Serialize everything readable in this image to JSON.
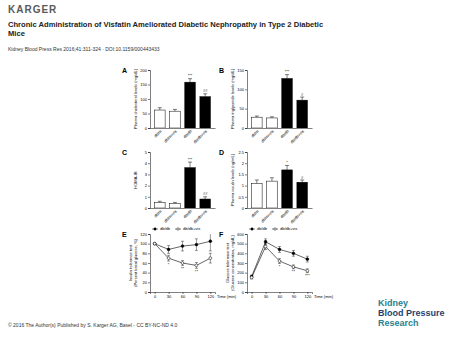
{
  "page": {
    "publisher": "KARGER",
    "title_lines": [
      "Chronic Administration of Visfatin Ameliorated Diabetic Nephropathy in Type 2 Diabetic",
      "Mice"
    ],
    "citation": "Kidney Blood Press Res 2016;41:311-324 · DOI:10.1159/000443433",
    "footer": "© 2016 The Author(s) Published by S. Karger AG, Basel - CC BY-NC-ND 4.0",
    "journal_logo": [
      "Kidney",
      "Blood Pressure",
      "Research"
    ]
  },
  "chart_data": [
    {
      "type": "bar",
      "title": "A",
      "y_label": "Plasma cholesterol levels (mg/dL)",
      "categories": [
        "db/m",
        "db/m+vis",
        "db/db",
        "db/db+vis"
      ],
      "values": [
        62,
        58,
        158,
        108
      ],
      "errors": [
        8,
        6,
        12,
        10
      ],
      "annotations": [
        null,
        null,
        "***",
        "##"
      ],
      "colors": [
        "#ffffff",
        "#ffffff",
        "#000000",
        "#000000"
      ],
      "ylim": [
        0,
        200
      ],
      "yticks": [
        0,
        50,
        100,
        150,
        200
      ],
      "grid": false
    },
    {
      "type": "bar",
      "title": "B",
      "y_label": "Plasma triglyceride levels (mg/dL)",
      "categories": [
        "db/m",
        "db/m+vis",
        "db/db",
        "db/db+vis"
      ],
      "values": [
        28,
        26,
        128,
        72
      ],
      "errors": [
        3,
        3,
        10,
        8
      ],
      "annotations": [
        null,
        null,
        "***",
        "#"
      ],
      "colors": [
        "#ffffff",
        "#ffffff",
        "#000000",
        "#000000"
      ],
      "ylim": [
        0,
        150
      ],
      "yticks": [
        0,
        50,
        100,
        150
      ],
      "grid": false
    },
    {
      "type": "bar",
      "title": "C",
      "y_label": "HOMA-IR",
      "categories": [
        "db/m",
        "db/m+vis",
        "db/db",
        "db/db+vis"
      ],
      "values": [
        0.5,
        0.4,
        3.6,
        0.8
      ],
      "errors": [
        0.1,
        0.1,
        0.5,
        0.2
      ],
      "annotations": [
        null,
        null,
        "***",
        "##"
      ],
      "colors": [
        "#ffffff",
        "#ffffff",
        "#000000",
        "#000000"
      ],
      "ylim": [
        0,
        5
      ],
      "yticks": [
        0,
        1,
        2,
        3,
        4,
        5
      ],
      "grid": false
    },
    {
      "type": "bar",
      "title": "D",
      "y_label": "Plasma insulin levels (ng/mL)",
      "categories": [
        "db/m",
        "db/m+vis",
        "db/db",
        "db/db+vis"
      ],
      "values": [
        1.1,
        1.2,
        1.7,
        1.15
      ],
      "errors": [
        0.15,
        0.15,
        0.2,
        0.1
      ],
      "annotations": [
        null,
        null,
        "*",
        "#"
      ],
      "colors": [
        "#ffffff",
        "#ffffff",
        "#000000",
        "#000000"
      ],
      "ylim": [
        0,
        2.5
      ],
      "yticks": [
        0,
        0.5,
        1,
        1.5,
        2,
        2.5
      ],
      "grid": false
    },
    {
      "type": "line",
      "title": "E",
      "y_label": [
        "Insulin tolerance test",
        "(Percent basal glucose, %)"
      ],
      "x_label": "Time (min)",
      "x": [
        0,
        30,
        60,
        90,
        120
      ],
      "series": [
        {
          "name": "db/db",
          "color": "#000000",
          "marker": "filled-circle",
          "line_style": "solid",
          "values": [
            100,
            88,
            95,
            98,
            105
          ],
          "errors": [
            0,
            8,
            10,
            12,
            20
          ],
          "annotations": [
            null,
            null,
            null,
            null,
            null
          ]
        },
        {
          "name": "db/db+vis",
          "color": "#000000",
          "marker": "open-circle",
          "line_style": "solid",
          "values": [
            100,
            70,
            60,
            55,
            70
          ],
          "errors": [
            0,
            6,
            5,
            6,
            10
          ],
          "annotations": [
            null,
            "*",
            "**",
            "**",
            null
          ]
        }
      ],
      "xlim": [
        -10,
        130
      ],
      "xticks": [
        0,
        30,
        60,
        90,
        120
      ],
      "ylim": [
        0,
        120
      ],
      "yticks": [
        0,
        20,
        40,
        60,
        80,
        100,
        120
      ],
      "grid": false,
      "legend": "top"
    },
    {
      "type": "line",
      "title": "F",
      "y_label": [
        "Glucose tolerance test",
        "(Glucose concentration, mg/dL)"
      ],
      "x_label": "Time (min)",
      "x": [
        0,
        30,
        60,
        90,
        120
      ],
      "series": [
        {
          "name": "db/db",
          "color": "#000000",
          "marker": "filled-circle",
          "line_style": "solid",
          "values": [
            160,
            520,
            440,
            400,
            340
          ],
          "errors": [
            15,
            30,
            30,
            30,
            30
          ],
          "annotations": [
            null,
            null,
            null,
            null,
            null
          ]
        },
        {
          "name": "db/db+vis",
          "color": "#000000",
          "marker": "open-circle",
          "line_style": "solid",
          "values": [
            150,
            470,
            320,
            260,
            220
          ],
          "errors": [
            15,
            30,
            25,
            20,
            20
          ],
          "annotations": [
            null,
            null,
            "*",
            "**",
            "***"
          ]
        }
      ],
      "xlim": [
        -10,
        130
      ],
      "xticks": [
        0,
        30,
        60,
        90,
        120
      ],
      "ylim": [
        0,
        600
      ],
      "yticks": [
        0,
        100,
        200,
        300,
        400,
        500,
        600
      ],
      "grid": false,
      "legend": "top"
    }
  ]
}
